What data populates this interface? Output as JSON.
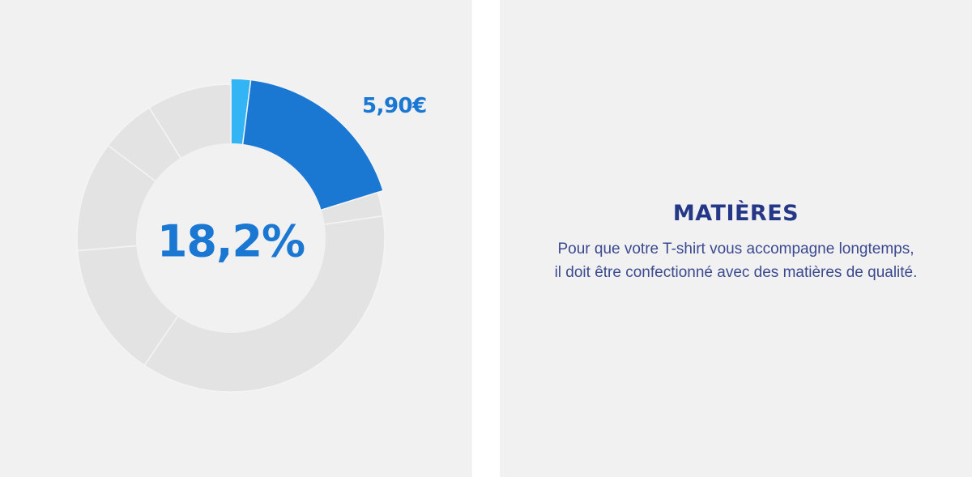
{
  "chart_data": {
    "type": "pie",
    "variant": "donut",
    "center_label": "18,2%",
    "highlight_label": "5,90€",
    "slices": [
      {
        "value": 2.0,
        "color": "#32b4f5",
        "highlight": true
      },
      {
        "value": 18.2,
        "color": "#1a77d2",
        "highlight": true
      },
      {
        "value": 2.5,
        "color": "#e3e3e3"
      },
      {
        "value": 36.8,
        "color": "#e3e3e3"
      },
      {
        "value": 14.2,
        "color": "#e3e3e3"
      },
      {
        "value": 11.6,
        "color": "#e3e3e3"
      },
      {
        "value": 5.8,
        "color": "#e3e3e3"
      },
      {
        "value": 8.9,
        "color": "#e3e3e3"
      }
    ],
    "colors": {
      "separator": "#f4f4f4",
      "inner": "#f1f1f2"
    }
  },
  "info": {
    "title": "MATIÈRES",
    "line1": "Pour que votre T-shirt vous accompagne longtemps,",
    "line2": "il doit être confectionné avec des matières de qualité."
  }
}
